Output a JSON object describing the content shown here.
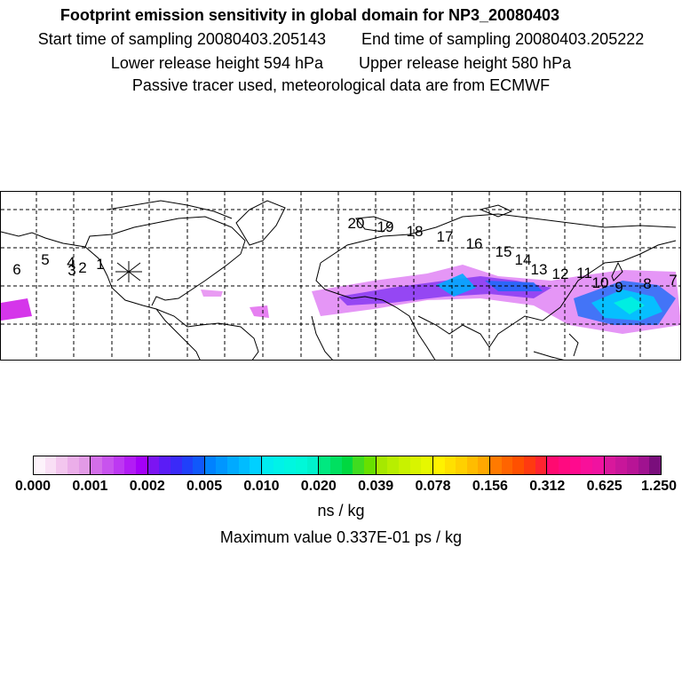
{
  "title": "Footprint emission sensitivity in global domain for NP3_20080403",
  "start_label": "Start time of sampling 20080403.205143",
  "end_label": "End time of sampling 20080403.205222",
  "lower_label": "Lower release height  594 hPa",
  "upper_label": "Upper release height  580 hPa",
  "tracer_label": "Passive tracer used, meteorological data are from ECMWF",
  "colorbar": {
    "ticks": [
      "0.000",
      "0.001",
      "0.002",
      "0.005",
      "0.010",
      "0.020",
      "0.039",
      "0.078",
      "0.156",
      "0.312",
      "0.625",
      "1.250"
    ],
    "segments": [
      [
        "#fdf3fb",
        "#f9dff5",
        "#f3c6ee",
        "#ebaee9",
        "#e29ae6"
      ],
      [
        "#d36ee9",
        "#c853ee",
        "#bd38f2",
        "#b21cf5",
        "#a400f8"
      ],
      [
        "#7c14f2",
        "#5b1cf6",
        "#3a2af8",
        "#2040fa",
        "#1058fb"
      ],
      [
        "#0082ff",
        "#0096ff",
        "#00aaff",
        "#00bcff",
        "#00d0ff"
      ],
      [
        "#00ecf0",
        "#00f2e8",
        "#00f6e0",
        "#00f8d8",
        "#00f2cc"
      ],
      [
        "#00e880",
        "#00e060",
        "#00d840",
        "#40dc20",
        "#68e000"
      ],
      [
        "#a6e800",
        "#b8ee00",
        "#c8f200",
        "#d8f400",
        "#e6f800"
      ],
      [
        "#fff200",
        "#ffe000",
        "#ffd000",
        "#ffbc00",
        "#ffa800"
      ],
      [
        "#ff7a00",
        "#ff6400",
        "#ff5000",
        "#ff3a10",
        "#ff2430"
      ],
      [
        "#ff0a70",
        "#ff0a80",
        "#ff0a8e",
        "#f8109a",
        "#f012a0"
      ],
      [
        "#d8189c",
        "#c8169a",
        "#b81496",
        "#a01290",
        "#7a0e7c"
      ]
    ]
  },
  "units": "ns / kg",
  "max_value": "Maximum value  0.337E-01 ps / kg",
  "trajectory_labels": [
    "1",
    "2",
    "3",
    "4",
    "5",
    "6",
    "7",
    "8",
    "9",
    "10",
    "11",
    "12",
    "13",
    "14",
    "15",
    "16",
    "17",
    "18",
    "19",
    "20"
  ]
}
